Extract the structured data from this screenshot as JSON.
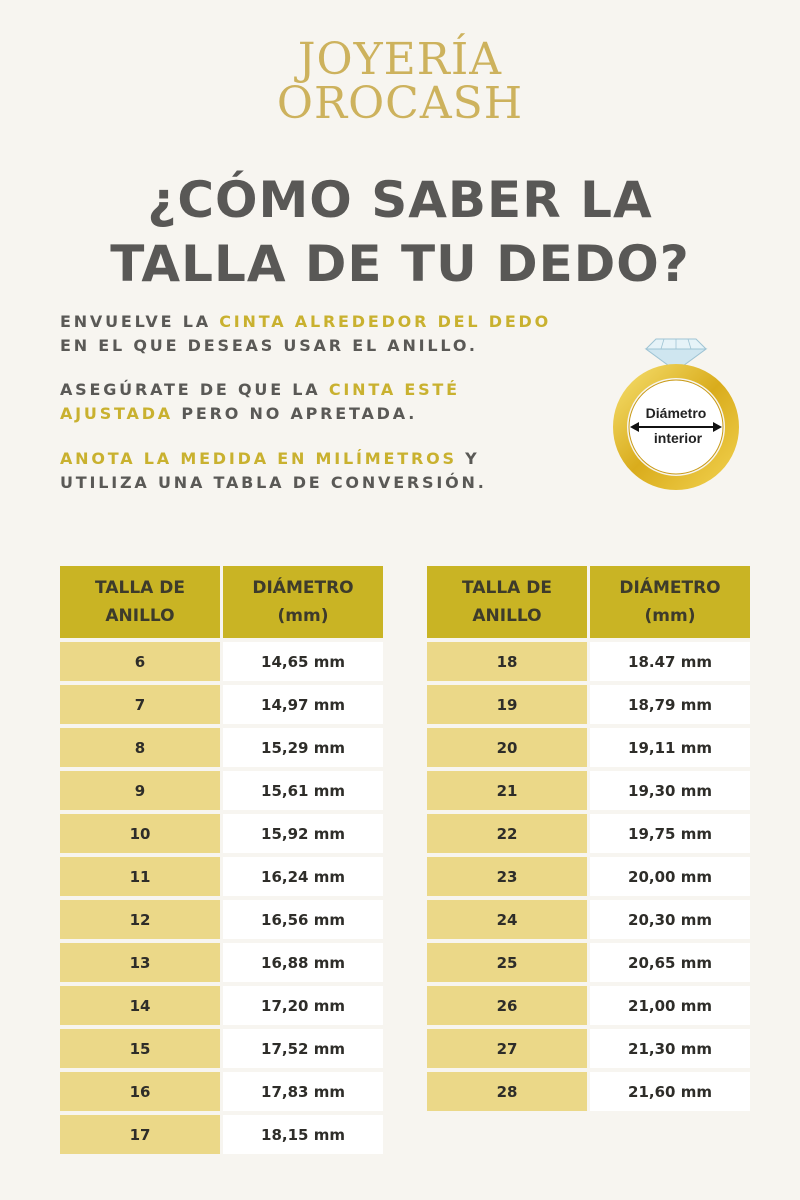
{
  "logo": {
    "line1": "JOYERÍA",
    "line2": "OROCASH"
  },
  "title": {
    "line1": "¿CÓMO SABER LA",
    "line2": "TALLA DE TU DEDO?"
  },
  "instructions": {
    "p1": {
      "a": "ENVUELVE LA ",
      "b": "CINTA ALREDEDOR DEL DEDO",
      "c": "EN EL QUE DESEAS USAR EL ANILLO."
    },
    "p2": {
      "a": "ASEGÚRATE DE QUE LA ",
      "b": "CINTA ESTÉ",
      "c": "AJUSTADA",
      "d": " PERO NO APRETADA."
    },
    "p3": {
      "a": "ANOTA LA MEDIDA EN MILÍMETROS",
      "b": " Y",
      "c": "UTILIZA UNA TABLA DE CONVERSIÓN."
    }
  },
  "ring": {
    "label1": "Diámetro",
    "label2": "interior",
    "gold": "#e2bd2a",
    "diamond": "#d8eef7"
  },
  "table": {
    "header_size_l1": "TALLA DE",
    "header_size_l2": "ANILLO",
    "header_diam_l1": "DIÁMETRO",
    "header_diam_l2": "(mm)",
    "left": [
      {
        "size": "6",
        "diam": "14,65 mm"
      },
      {
        "size": "7",
        "diam": "14,97 mm"
      },
      {
        "size": "8",
        "diam": "15,29 mm"
      },
      {
        "size": "9",
        "diam": "15,61 mm"
      },
      {
        "size": "10",
        "diam": "15,92 mm"
      },
      {
        "size": "11",
        "diam": "16,24 mm"
      },
      {
        "size": "12",
        "diam": "16,56 mm"
      },
      {
        "size": "13",
        "diam": "16,88 mm"
      },
      {
        "size": "14",
        "diam": "17,20 mm"
      },
      {
        "size": "15",
        "diam": "17,52 mm"
      },
      {
        "size": "16",
        "diam": "17,83 mm"
      },
      {
        "size": "17",
        "diam": "18,15 mm"
      }
    ],
    "right": [
      {
        "size": "18",
        "diam": "18.47 mm"
      },
      {
        "size": "19",
        "diam": "18,79 mm"
      },
      {
        "size": "20",
        "diam": "19,11 mm"
      },
      {
        "size": "21",
        "diam": "19,30 mm"
      },
      {
        "size": "22",
        "diam": "19,75 mm"
      },
      {
        "size": "23",
        "diam": "20,00 mm"
      },
      {
        "size": "24",
        "diam": "20,30 mm"
      },
      {
        "size": "25",
        "diam": "20,65 mm"
      },
      {
        "size": "26",
        "diam": "21,00 mm"
      },
      {
        "size": "27",
        "diam": "21,30 mm"
      },
      {
        "size": "28",
        "diam": "21,60 mm"
      }
    ]
  },
  "colors": {
    "background": "#f7f5f0",
    "accent": "#c9b12f",
    "header": "#c9b424",
    "size_cell": "#ebd888",
    "text": "#5a5956",
    "logo": "#cdb25d"
  }
}
